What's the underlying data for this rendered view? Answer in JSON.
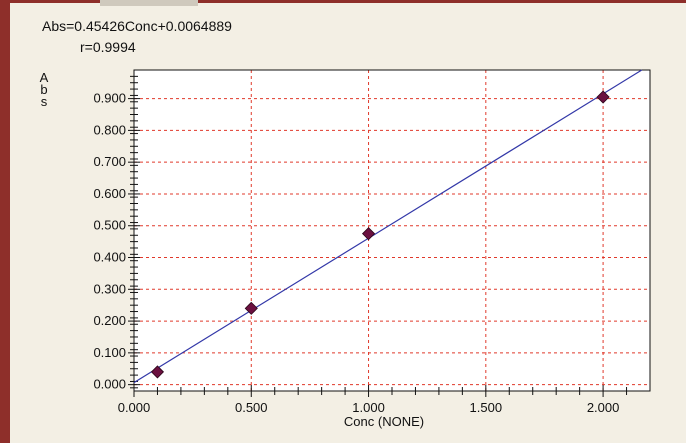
{
  "chart_data": {
    "type": "scatter",
    "equation": "Abs=0.45426Conc+0.0064889",
    "r_value": "r=0.9994",
    "ylabel": "Abs",
    "xlabel": "Conc (NONE)",
    "xlim": [
      0.0,
      2.2
    ],
    "ylim": [
      -0.02,
      0.99
    ],
    "x_ticks": [
      "0.000",
      "0.500",
      "1.000",
      "1.500",
      "2.000"
    ],
    "y_ticks": [
      "0.000",
      "0.100",
      "0.200",
      "0.300",
      "0.400",
      "0.500",
      "0.600",
      "0.700",
      "0.800",
      "0.900"
    ],
    "grid": true,
    "series": [
      {
        "x": [
          0.1,
          0.5,
          1.0,
          2.0
        ],
        "y": [
          0.04,
          0.24,
          0.475,
          0.905
        ]
      }
    ],
    "fit": {
      "slope": 0.45426,
      "intercept": 0.0064889
    },
    "colors": {
      "marker": "#6b1040",
      "fit_line": "#3338a8",
      "grid": "#e0392b",
      "plot_bg": "#ffffff",
      "frame_bg": "#f3efe4"
    }
  }
}
